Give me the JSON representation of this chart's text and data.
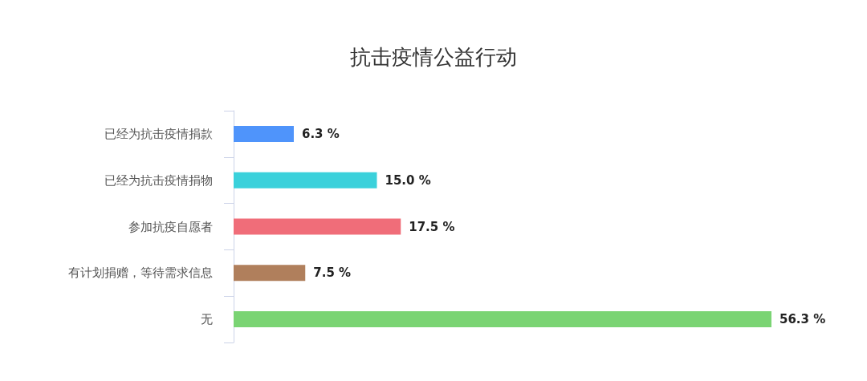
{
  "chart_data": {
    "type": "bar",
    "orientation": "horizontal",
    "title": "抗击疫情公益行动",
    "categories": [
      "已经为抗击疫情捐款",
      "已经为抗击疫情捐物",
      "参加抗疫自愿者",
      "有计划捐赠，等待需求信息",
      "无"
    ],
    "values": [
      6.3,
      15.0,
      17.5,
      7.5,
      56.3
    ],
    "colors": [
      "#4f94fb",
      "#3ad1db",
      "#f06d79",
      "#b07f5c",
      "#7ad473"
    ],
    "value_labels": [
      "6.3 %",
      "15.0 %",
      "17.5 %",
      "7.5 %",
      "56.3 %"
    ]
  }
}
